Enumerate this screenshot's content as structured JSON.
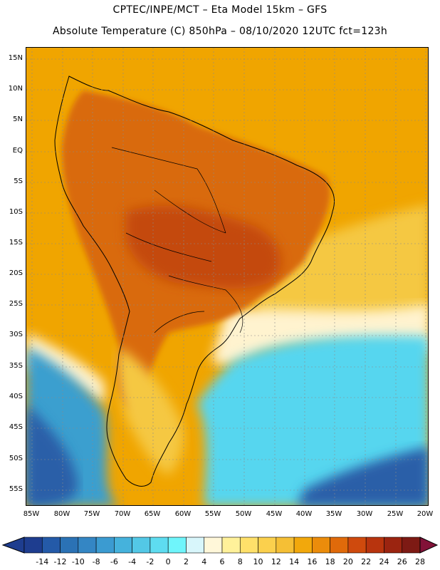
{
  "header": {
    "line1": "CPTEC/INPE/MCT –  Eta Model 15km – GFS",
    "line2": "Absolute Temperature (C) 850hPa – 08/10/2020 12UTC fct=123h"
  },
  "map": {
    "lat_labels": [
      "15N",
      "10N",
      "5N",
      "EQ",
      "5S",
      "10S",
      "15S",
      "20S",
      "25S",
      "30S",
      "35S",
      "40S",
      "45S",
      "50S",
      "55S"
    ],
    "lon_labels": [
      "85W",
      "80W",
      "75W",
      "70W",
      "65W",
      "60W",
      "55W",
      "50W",
      "45W",
      "40W",
      "35W",
      "30W",
      "25W",
      "20W"
    ],
    "grid_lines": true,
    "fields": {
      "ocean_north": "#f0a500",
      "continent_hot": "#d96b0e",
      "hottest_core": "#c44a10",
      "south_atlantic_warm": "#f5c842",
      "subtropical_band": "#fff3cf",
      "cold_tongue": "#56d6ef",
      "pacific_cold": "#3b9fcf",
      "deep_cold": "#2b5fa8"
    }
  },
  "colorbar": {
    "colors": [
      "#1e3d8f",
      "#245aa8",
      "#2b72b5",
      "#3486c4",
      "#3b9bd1",
      "#45b2dc",
      "#53c8e6",
      "#5edcf0",
      "#6ff5fb",
      "#d8f6fb",
      "#fff7d9",
      "#fff19a",
      "#ffe06a",
      "#fbd04d",
      "#f5bf35",
      "#f2a80c",
      "#eb8c0b",
      "#e06a0a",
      "#cf4a0d",
      "#b8340e",
      "#9b2410",
      "#7d1a14",
      "#821238"
    ],
    "ticks": [
      "-14",
      "-12",
      "-10",
      "-8",
      "-6",
      "-4",
      "-2",
      "0",
      "2",
      "4",
      "6",
      "8",
      "10",
      "12",
      "14",
      "16",
      "18",
      "20",
      "22",
      "24",
      "26",
      "28"
    ]
  }
}
